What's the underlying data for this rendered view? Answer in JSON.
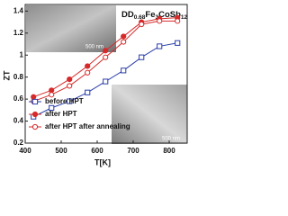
{
  "chart_data": {
    "type": "line",
    "title_parts": [
      "DD",
      "0.68",
      "Fe",
      "3",
      "CoSb",
      "12"
    ],
    "x_label": "T[K]",
    "y_label": "ZT",
    "annotations": [
      "500 nm",
      "500 nm"
    ],
    "x": [
      423,
      473,
      523,
      573,
      623,
      673,
      723,
      773,
      823
    ],
    "xlim": [
      400,
      850
    ],
    "xticks": [
      400,
      500,
      600,
      700,
      800
    ],
    "ylim": [
      0.2,
      1.46
    ],
    "yticks": [
      0.2,
      0.4,
      0.6,
      0.8,
      1.0,
      1.2,
      1.4
    ],
    "legend": "lower left",
    "series": [
      {
        "name": "before HPT",
        "color": "#2b3fa8",
        "marker": "square",
        "filled": false,
        "values": [
          0.44,
          0.52,
          0.58,
          0.66,
          0.76,
          0.86,
          0.98,
          1.08,
          1.11
        ]
      },
      {
        "name": "after HPT",
        "color": "#d62a2a",
        "marker": "circle",
        "filled": true,
        "values": [
          0.62,
          0.68,
          0.78,
          0.9,
          1.04,
          1.17,
          1.3,
          1.33,
          1.34
        ]
      },
      {
        "name": "after HPT after annealing",
        "color": "#d62a2a",
        "marker": "circle",
        "filled": false,
        "values": [
          0.58,
          0.64,
          0.72,
          0.84,
          0.98,
          1.12,
          1.28,
          1.31,
          1.31
        ]
      }
    ]
  }
}
